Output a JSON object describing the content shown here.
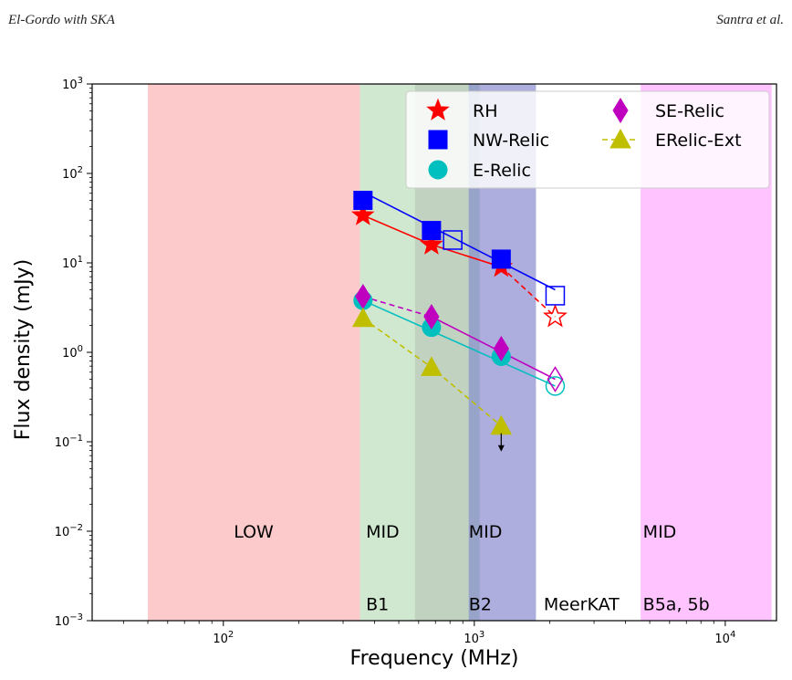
{
  "header": {
    "left": "El-Gordo with SKA",
    "right": "Santra et al."
  },
  "chart_data": {
    "type": "scatter",
    "xlabel": "Frequency (MHz)",
    "ylabel": "Flux density (mJy)",
    "xscale": "log",
    "yscale": "log",
    "xlim": [
      30,
      16000
    ],
    "ylim": [
      0.001,
      1000
    ],
    "xticks": [
      {
        "v": 100,
        "base": "10",
        "exp": "2"
      },
      {
        "v": 1000,
        "base": "10",
        "exp": "3"
      },
      {
        "v": 10000,
        "base": "10",
        "exp": "4"
      }
    ],
    "yticks": [
      {
        "v": 0.001,
        "base": "10",
        "exp": "−3"
      },
      {
        "v": 0.01,
        "base": "10",
        "exp": "−2"
      },
      {
        "v": 0.1,
        "base": "10",
        "exp": "−1"
      },
      {
        "v": 1,
        "base": "10",
        "exp": "0"
      },
      {
        "v": 10,
        "base": "10",
        "exp": "1"
      },
      {
        "v": 100,
        "base": "10",
        "exp": "2"
      },
      {
        "v": 1000,
        "base": "10",
        "exp": "3"
      }
    ],
    "bands": [
      {
        "x0": 50,
        "x1": 350,
        "color": "#f88080",
        "opacity": 0.42
      },
      {
        "x0": 350,
        "x1": 1050,
        "color": "#6fba6f",
        "opacity": 0.33
      },
      {
        "x0": 580,
        "x1": 1760,
        "color": "#a0a0a0",
        "opacity": 0.3
      },
      {
        "x0": 950,
        "x1": 1760,
        "color": "#5858d8",
        "opacity": 0.38
      },
      {
        "x0": 4600,
        "x1": 15300,
        "color": "#ff44ff",
        "opacity": 0.32
      }
    ],
    "band_labels": [
      {
        "text": "LOW",
        "x": 110,
        "y": 0.01
      },
      {
        "text": "MID",
        "x": 370,
        "y": 0.01
      },
      {
        "text": "MID",
        "x": 950,
        "y": 0.01
      },
      {
        "text": "MID",
        "x": 4700,
        "y": 0.01
      },
      {
        "text": "B1",
        "x": 370,
        "y": 0.00155
      },
      {
        "text": "B2",
        "x": 950,
        "y": 0.00155
      },
      {
        "text": "MeerKAT",
        "x": 1890,
        "y": 0.00155
      },
      {
        "text": "B5a, 5b",
        "x": 4700,
        "y": 0.00155
      }
    ],
    "series": [
      {
        "name": "RH",
        "marker": "star",
        "color": "#ff0000",
        "points": [
          [
            360,
            34
          ],
          [
            675,
            16
          ],
          [
            1280,
            9
          ]
        ],
        "solid_line": [
          [
            360,
            34
          ],
          [
            675,
            16
          ],
          [
            1280,
            9
          ]
        ],
        "dashed_line": [
          [
            1280,
            9
          ],
          [
            2100,
            2.5
          ]
        ],
        "open_points": [
          [
            2100,
            2.5
          ]
        ]
      },
      {
        "name": "NW-Relic",
        "marker": "square",
        "color": "#0000ff",
        "points": [
          [
            360,
            50
          ],
          [
            675,
            23
          ],
          [
            1280,
            11
          ]
        ],
        "solid_line": [
          [
            360,
            62
          ],
          [
            2100,
            5
          ]
        ],
        "dashed_line": [],
        "open_points": [
          [
            820,
            18
          ],
          [
            2100,
            4.3
          ]
        ]
      },
      {
        "name": "E-Relic",
        "marker": "circle",
        "color": "#00bfbf",
        "points": [
          [
            360,
            3.8
          ],
          [
            675,
            1.9
          ],
          [
            1280,
            0.9
          ]
        ],
        "solid_line": [
          [
            360,
            3.8
          ],
          [
            2100,
            0.42
          ]
        ],
        "dashed_line": [],
        "open_points": [
          [
            2100,
            0.42
          ]
        ]
      },
      {
        "name": "SE-Relic",
        "marker": "diamond",
        "color": "#bf00bf",
        "points": [
          [
            360,
            4.2
          ],
          [
            675,
            2.5
          ],
          [
            1280,
            1.1
          ]
        ],
        "solid_line": [
          [
            675,
            2.5
          ],
          [
            2100,
            0.5
          ]
        ],
        "dashed_line": [
          [
            360,
            4.2
          ],
          [
            675,
            2.5
          ]
        ],
        "open_points": [
          [
            2100,
            0.5
          ]
        ]
      },
      {
        "name": "ERelic-Ext",
        "marker": "triangle",
        "color": "#bfbf00",
        "points": [
          [
            360,
            2.4
          ],
          [
            675,
            0.68
          ],
          [
            1280,
            0.15
          ]
        ],
        "solid_line": [],
        "dashed_line": [
          [
            360,
            2.4
          ],
          [
            675,
            0.68
          ],
          [
            1280,
            0.15
          ]
        ],
        "open_points": [],
        "upper_limit_at": [
          1280,
          0.15
        ]
      }
    ],
    "legend": {
      "placement": "top-right",
      "entries": [
        {
          "label": "RH",
          "series": 0
        },
        {
          "label": "SE-Relic",
          "series": 3
        },
        {
          "label": "NW-Relic",
          "series": 1
        },
        {
          "label": "ERelic-Ext",
          "series": 4
        },
        {
          "label": "E-Relic",
          "series": 2
        }
      ]
    }
  }
}
